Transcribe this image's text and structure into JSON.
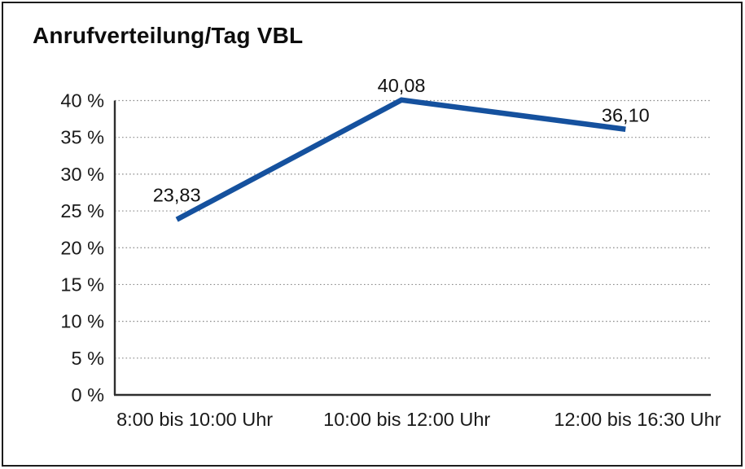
{
  "chart_data": {
    "type": "line",
    "title": "Anrufverteilung/Tag VBL",
    "categories": [
      "8:00 bis 10:00 Uhr",
      "10:00 bis 12:00 Uhr",
      "12:00 bis 16:30 Uhr"
    ],
    "series": [
      {
        "name": "Anrufverteilung/Tag VBL",
        "values": [
          23.83,
          40.08,
          36.1
        ]
      }
    ],
    "value_labels": [
      "23,83",
      "40,08",
      "36,10"
    ],
    "xlabel": "",
    "ylabel": "",
    "ylim": [
      0,
      40
    ],
    "ytick_step": 5,
    "ytick_labels": [
      "0 %",
      "5 %",
      "10 %",
      "15 %",
      "20 %",
      "25 %",
      "30 %",
      "35 %",
      "40 %"
    ],
    "grid": "horizontal-dotted",
    "legend": "none",
    "line_color": "#15519E"
  }
}
